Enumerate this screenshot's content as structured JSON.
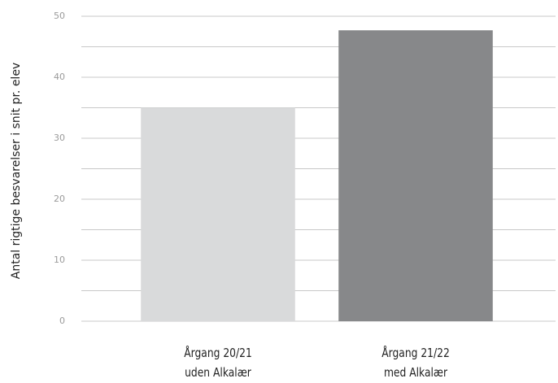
{
  "chart_data": {
    "type": "bar",
    "y_label": "Antal rigtige besvarelser i snit pr. elev",
    "categories": [
      "Årgang 20/21\nuden Alkalær",
      "Årgang 21/22\nmed Alkalær"
    ],
    "values": [
      35,
      47.7
    ],
    "colors": [
      "#d9dadb",
      "#87888a"
    ],
    "ylim": [
      0,
      50
    ],
    "yticks": [
      0,
      10,
      20,
      30,
      40,
      50
    ],
    "minor_yticks": [
      5,
      15,
      25,
      35,
      45
    ],
    "grid": true
  }
}
